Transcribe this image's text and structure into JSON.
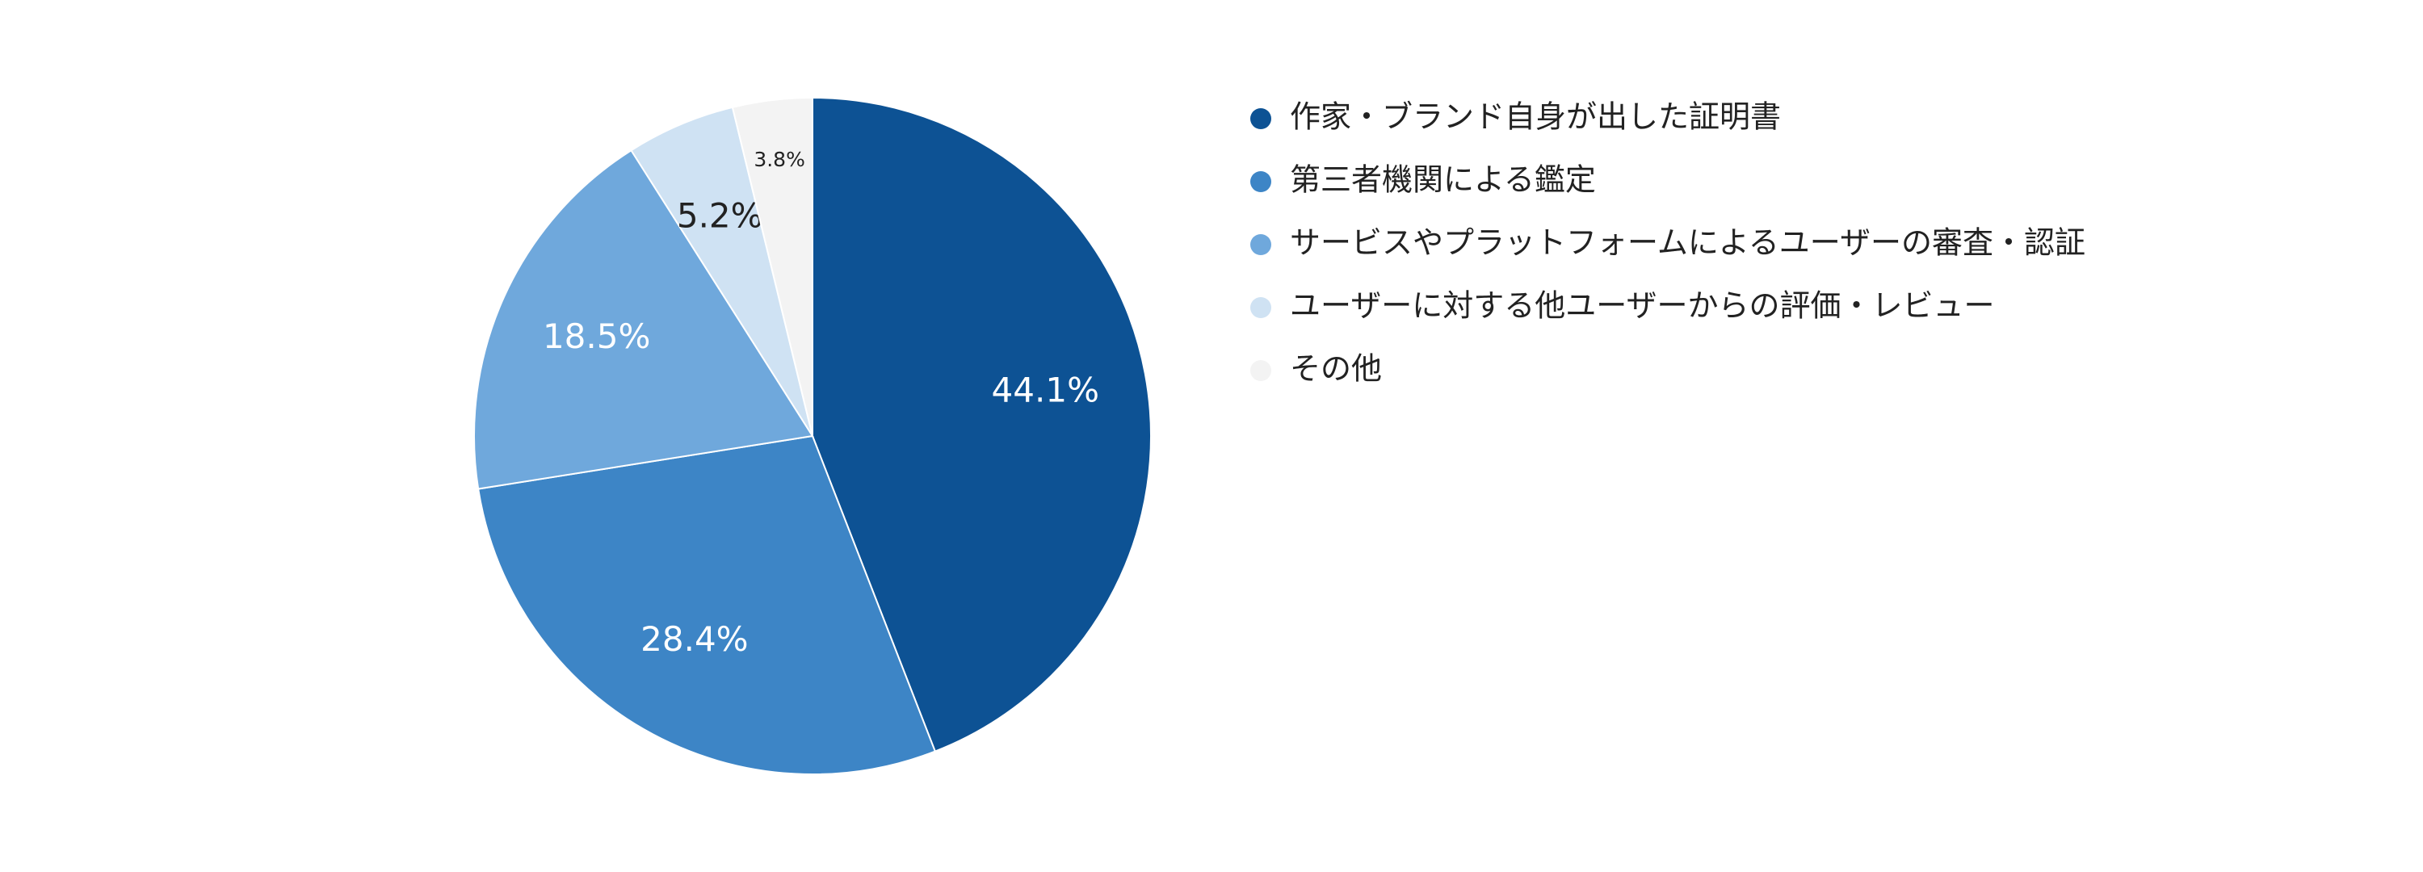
{
  "chart_data": {
    "type": "pie",
    "categories": [
      "作家・ブランド自身が出した証明書",
      "第三者機関による鑑定",
      "サービスやプラットフォームによるユーザーの審査・認証",
      "ユーザーに対する他ユーザーからの評価・レビュー",
      "その他"
    ],
    "values": [
      44.1,
      28.4,
      18.5,
      5.2,
      3.8
    ],
    "value_labels": [
      "44.1%",
      "28.4%",
      "18.5%",
      "5.2%",
      "3.8%"
    ],
    "colors": [
      "#0d5294",
      "#3d85c6",
      "#6fa8dc",
      "#cfe2f3",
      "#f3f3f3"
    ],
    "legend": "right"
  }
}
